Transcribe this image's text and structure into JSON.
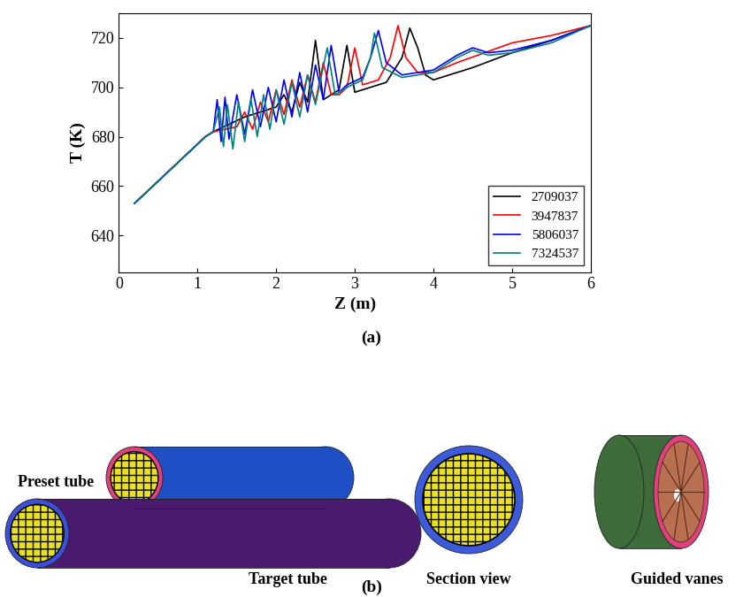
{
  "chart_data": {
    "type": "line",
    "x_label": "Z (m)",
    "y_label": "T (K)",
    "xlim": [
      0,
      6
    ],
    "xticks": [
      0,
      1,
      2,
      3,
      4,
      5,
      6
    ],
    "ylim": [
      625,
      730
    ],
    "yticks": [
      640,
      660,
      680,
      700,
      720
    ],
    "legend": "lower right",
    "series": [
      {
        "name": "2709037",
        "color": "#000000",
        "x": [
          0.2,
          0.4,
          0.6,
          0.8,
          1.0,
          1.1,
          1.2,
          1.4,
          1.6,
          1.8,
          2.0,
          2.1,
          2.2,
          2.3,
          2.4,
          2.5,
          2.6,
          2.7,
          2.8,
          2.9,
          3.0,
          3.2,
          3.4,
          3.6,
          3.7,
          3.8,
          3.9,
          4.0,
          4.5,
          5.0,
          5.5,
          6.0
        ],
        "values": [
          653,
          659,
          665,
          671,
          677,
          680,
          682,
          685,
          688,
          690,
          692,
          697,
          690,
          702,
          694,
          719,
          695,
          697,
          699,
          717,
          698,
          700,
          702,
          712,
          724,
          716,
          705,
          703,
          708,
          714,
          719,
          725
        ]
      },
      {
        "name": "3947837",
        "color": "#ff0000",
        "x": [
          0.2,
          0.4,
          0.6,
          0.8,
          1.0,
          1.1,
          1.2,
          1.5,
          1.6,
          1.7,
          1.8,
          1.9,
          2.0,
          2.1,
          2.2,
          2.3,
          2.4,
          2.5,
          2.6,
          2.7,
          2.8,
          2.9,
          3.0,
          3.1,
          3.3,
          3.45,
          3.55,
          3.65,
          3.8,
          4.0,
          4.3,
          5.0,
          5.5,
          6.0
        ],
        "values": [
          653,
          659,
          665,
          671,
          677,
          680,
          682,
          684,
          690,
          683,
          694,
          686,
          699,
          689,
          703,
          692,
          705,
          694,
          710,
          697,
          697,
          700,
          716,
          701,
          703,
          712,
          725,
          712,
          706,
          706,
          710,
          718,
          721,
          725
        ]
      },
      {
        "name": "5806037",
        "color": "#0000ff",
        "x": [
          0.2,
          0.4,
          0.6,
          0.8,
          1.0,
          1.1,
          1.2,
          1.25,
          1.3,
          1.35,
          1.4,
          1.5,
          1.6,
          1.7,
          1.8,
          1.9,
          2.0,
          2.1,
          2.2,
          2.3,
          2.4,
          2.5,
          2.6,
          2.7,
          2.8,
          2.9,
          3.1,
          3.2,
          3.3,
          3.4,
          3.6,
          4.0,
          4.3,
          4.5,
          4.7,
          5.0,
          5.5,
          6.0
        ],
        "values": [
          653,
          659,
          665,
          671,
          677,
          680,
          682,
          695,
          678,
          696,
          679,
          697,
          681,
          699,
          684,
          700,
          686,
          703,
          688,
          706,
          690,
          709,
          695,
          717,
          698,
          701,
          704,
          712,
          723,
          710,
          705,
          707,
          713,
          716,
          714,
          715,
          719,
          725
        ]
      },
      {
        "name": "7324537",
        "color": "#008080",
        "x": [
          0.2,
          0.4,
          0.6,
          0.8,
          1.0,
          1.1,
          1.2,
          1.28,
          1.33,
          1.38,
          1.45,
          1.52,
          1.6,
          1.68,
          1.76,
          1.84,
          1.92,
          2.0,
          2.1,
          2.2,
          2.3,
          2.4,
          2.5,
          2.65,
          2.75,
          2.9,
          3.1,
          3.2,
          3.25,
          3.35,
          3.6,
          4.0,
          4.3,
          4.5,
          4.7,
          5.0,
          5.5,
          6.0
        ],
        "values": [
          653,
          659,
          665,
          671,
          677,
          680,
          682,
          692,
          676,
          693,
          675,
          694,
          678,
          695,
          680,
          697,
          683,
          699,
          685,
          702,
          688,
          705,
          693,
          716,
          697,
          700,
          703,
          712,
          722,
          708,
          704,
          706,
          712,
          715,
          713,
          714,
          718,
          725
        ]
      }
    ]
  },
  "panel_labels": [
    "(a)",
    "(b)"
  ],
  "diagram": {
    "parts": [
      {
        "label": "Preset tube"
      },
      {
        "label": "Target tube"
      },
      {
        "label": "Section view"
      },
      {
        "label": "Guided vanes"
      }
    ]
  }
}
